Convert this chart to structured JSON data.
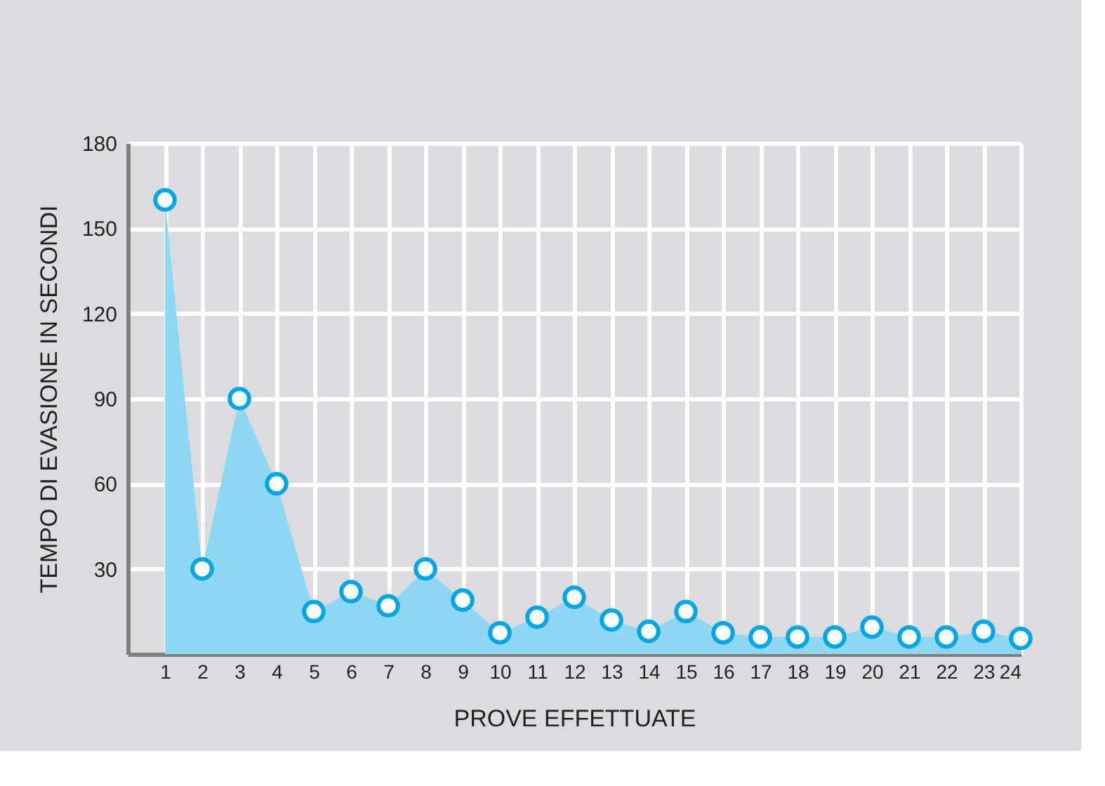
{
  "chart_data": {
    "type": "area",
    "xlabel": "PROVE EFFETTUATE",
    "ylabel": "TEMPO DI EVASIONE IN SECONDI",
    "x": [
      1,
      2,
      3,
      4,
      5,
      6,
      7,
      8,
      9,
      10,
      11,
      12,
      13,
      14,
      15,
      16,
      17,
      18,
      19,
      20,
      21,
      22,
      23,
      24
    ],
    "series": [
      {
        "color": "#8fd8f5",
        "values": [
          160,
          30,
          90,
          60,
          15,
          22,
          17,
          30,
          19,
          7.5,
          13,
          20,
          12,
          8,
          15,
          7.5,
          6,
          6,
          6,
          9.5,
          6,
          6,
          8,
          5.5
        ]
      }
    ],
    "xlim": [
      0,
      24
    ],
    "xticks": [
      1,
      2,
      3,
      4,
      5,
      6,
      7,
      8,
      9,
      10,
      11,
      12,
      13,
      14,
      15,
      16,
      17,
      18,
      19,
      20,
      21,
      22,
      23,
      24
    ],
    "ylim": [
      0,
      180
    ],
    "yticks": [
      30,
      60,
      90,
      120,
      150,
      180
    ],
    "grid": true,
    "marker": "circle"
  }
}
